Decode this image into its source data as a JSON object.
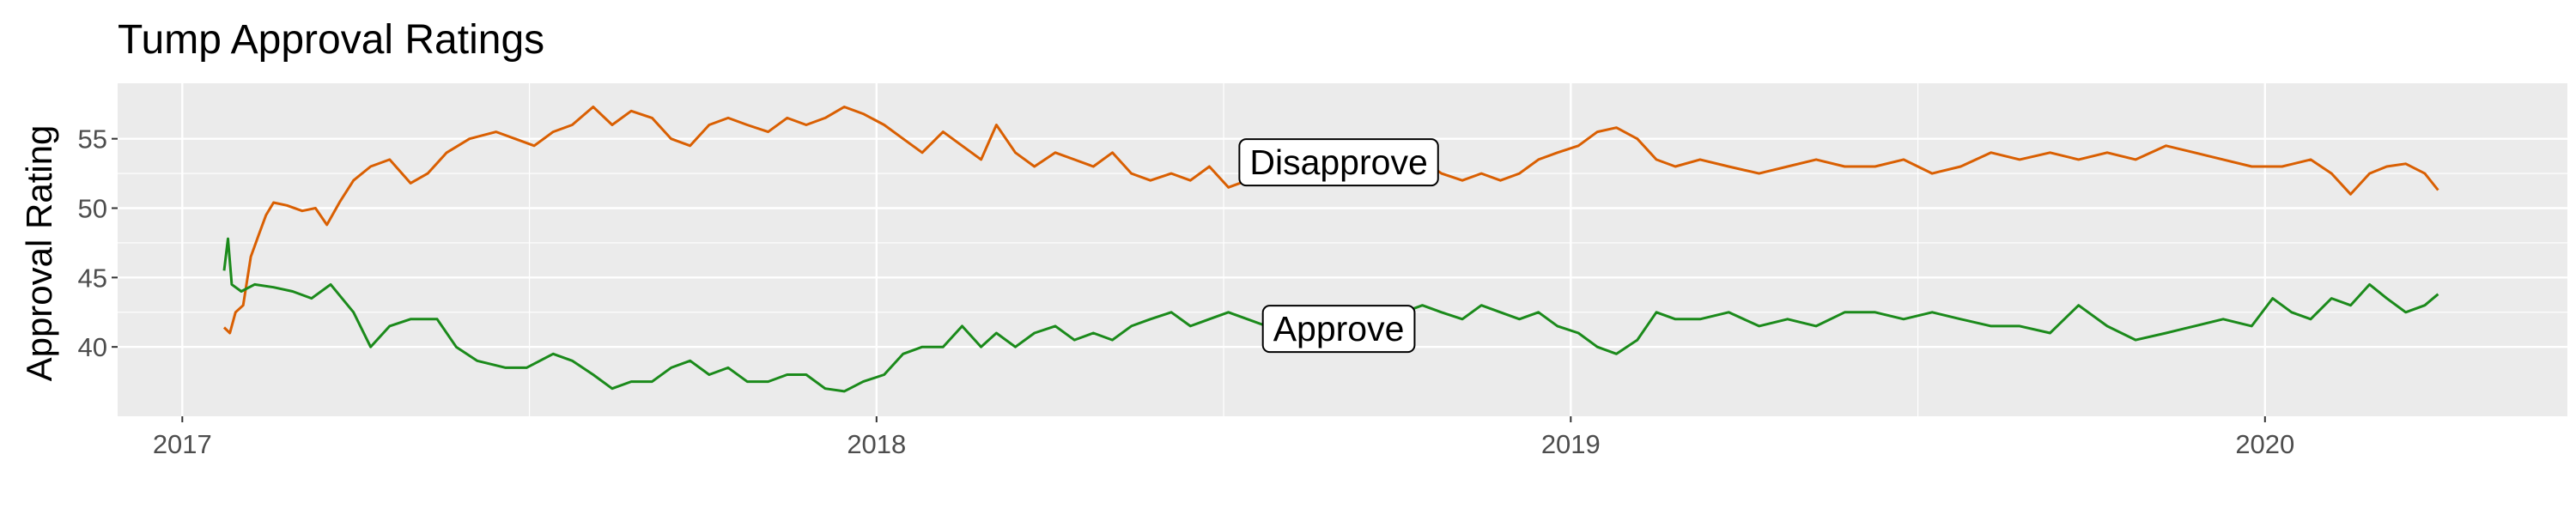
{
  "chart_data": {
    "type": "line",
    "title": "Tump Approval Ratings",
    "xlabel": "",
    "ylabel": "Approval Rating",
    "x_range": [
      "2016-11-28",
      "2020-06-08"
    ],
    "ylim": [
      35,
      59
    ],
    "x_ticks": [
      {
        "date": "2017-01-01",
        "label": "2017"
      },
      {
        "date": "2018-01-01",
        "label": "2018"
      },
      {
        "date": "2019-01-01",
        "label": "2019"
      },
      {
        "date": "2020-01-01",
        "label": "2020"
      }
    ],
    "y_ticks": [
      40,
      45,
      50,
      55
    ],
    "grid": true,
    "panel_background": "#ebebeb",
    "grid_color": "#ffffff",
    "series": [
      {
        "label_text": "Disapprove",
        "label_position": {
          "date": "2018-09-01",
          "value": 53.3
        },
        "color": "#d95f02",
        "points": [
          [
            "2017-01-23",
            41.4
          ],
          [
            "2017-01-26",
            41.0
          ],
          [
            "2017-01-29",
            42.5
          ],
          [
            "2017-02-02",
            43.0
          ],
          [
            "2017-02-06",
            46.5
          ],
          [
            "2017-02-10",
            48.0
          ],
          [
            "2017-02-14",
            49.5
          ],
          [
            "2017-02-18",
            50.4
          ],
          [
            "2017-02-25",
            50.2
          ],
          [
            "2017-03-05",
            49.8
          ],
          [
            "2017-03-12",
            50.0
          ],
          [
            "2017-03-18",
            48.8
          ],
          [
            "2017-03-25",
            50.5
          ],
          [
            "2017-04-01",
            52.0
          ],
          [
            "2017-04-10",
            53.0
          ],
          [
            "2017-04-20",
            53.5
          ],
          [
            "2017-05-01",
            51.8
          ],
          [
            "2017-05-10",
            52.5
          ],
          [
            "2017-05-20",
            54.0
          ],
          [
            "2017-06-01",
            55.0
          ],
          [
            "2017-06-15",
            55.5
          ],
          [
            "2017-06-25",
            55.0
          ],
          [
            "2017-07-05",
            54.5
          ],
          [
            "2017-07-15",
            55.5
          ],
          [
            "2017-07-25",
            56.0
          ],
          [
            "2017-08-05",
            57.3
          ],
          [
            "2017-08-15",
            56.0
          ],
          [
            "2017-08-25",
            57.0
          ],
          [
            "2017-09-05",
            56.5
          ],
          [
            "2017-09-15",
            55.0
          ],
          [
            "2017-09-25",
            54.5
          ],
          [
            "2017-10-05",
            56.0
          ],
          [
            "2017-10-15",
            56.5
          ],
          [
            "2017-10-25",
            56.0
          ],
          [
            "2017-11-05",
            55.5
          ],
          [
            "2017-11-15",
            56.5
          ],
          [
            "2017-11-25",
            56.0
          ],
          [
            "2017-12-05",
            56.5
          ],
          [
            "2017-12-15",
            57.3
          ],
          [
            "2017-12-25",
            56.8
          ],
          [
            "2018-01-05",
            56.0
          ],
          [
            "2018-01-15",
            55.0
          ],
          [
            "2018-01-25",
            54.0
          ],
          [
            "2018-02-05",
            55.5
          ],
          [
            "2018-02-15",
            54.5
          ],
          [
            "2018-02-25",
            53.5
          ],
          [
            "2018-03-05",
            56.0
          ],
          [
            "2018-03-15",
            54.0
          ],
          [
            "2018-03-25",
            53.0
          ],
          [
            "2018-04-05",
            54.0
          ],
          [
            "2018-04-15",
            53.5
          ],
          [
            "2018-04-25",
            53.0
          ],
          [
            "2018-05-05",
            54.0
          ],
          [
            "2018-05-15",
            52.5
          ],
          [
            "2018-05-25",
            52.0
          ],
          [
            "2018-06-05",
            52.5
          ],
          [
            "2018-06-15",
            52.0
          ],
          [
            "2018-06-25",
            53.0
          ],
          [
            "2018-07-05",
            51.5
          ],
          [
            "2018-07-15",
            52.0
          ],
          [
            "2018-07-25",
            53.5
          ],
          [
            "2018-08-05",
            53.0
          ],
          [
            "2018-08-15",
            54.0
          ],
          [
            "2018-08-25",
            53.5
          ],
          [
            "2018-09-05",
            54.0
          ],
          [
            "2018-09-15",
            52.5
          ],
          [
            "2018-09-25",
            53.0
          ],
          [
            "2018-10-05",
            52.5
          ],
          [
            "2018-10-15",
            53.5
          ],
          [
            "2018-10-25",
            52.5
          ],
          [
            "2018-11-05",
            52.0
          ],
          [
            "2018-11-15",
            52.5
          ],
          [
            "2018-11-25",
            52.0
          ],
          [
            "2018-12-05",
            52.5
          ],
          [
            "2018-12-15",
            53.5
          ],
          [
            "2018-12-25",
            54.0
          ],
          [
            "2019-01-05",
            54.5
          ],
          [
            "2019-01-15",
            55.5
          ],
          [
            "2019-01-25",
            55.8
          ],
          [
            "2019-02-05",
            55.0
          ],
          [
            "2019-02-15",
            53.5
          ],
          [
            "2019-02-25",
            53.0
          ],
          [
            "2019-03-10",
            53.5
          ],
          [
            "2019-03-25",
            53.0
          ],
          [
            "2019-04-10",
            52.5
          ],
          [
            "2019-04-25",
            53.0
          ],
          [
            "2019-05-10",
            53.5
          ],
          [
            "2019-05-25",
            53.0
          ],
          [
            "2019-06-10",
            53.0
          ],
          [
            "2019-06-25",
            53.5
          ],
          [
            "2019-07-10",
            52.5
          ],
          [
            "2019-07-25",
            53.0
          ],
          [
            "2019-08-10",
            54.0
          ],
          [
            "2019-08-25",
            53.5
          ],
          [
            "2019-09-10",
            54.0
          ],
          [
            "2019-09-25",
            53.5
          ],
          [
            "2019-10-10",
            54.0
          ],
          [
            "2019-10-25",
            53.5
          ],
          [
            "2019-11-10",
            54.5
          ],
          [
            "2019-11-25",
            54.0
          ],
          [
            "2019-12-10",
            53.5
          ],
          [
            "2019-12-25",
            53.0
          ],
          [
            "2020-01-10",
            53.0
          ],
          [
            "2020-01-25",
            53.5
          ],
          [
            "2020-02-05",
            52.5
          ],
          [
            "2020-02-15",
            51.0
          ],
          [
            "2020-02-25",
            52.5
          ],
          [
            "2020-03-05",
            53.0
          ],
          [
            "2020-03-15",
            53.2
          ],
          [
            "2020-03-25",
            52.5
          ],
          [
            "2020-04-01",
            51.3
          ]
        ]
      },
      {
        "label_text": "Approve",
        "label_position": {
          "date": "2018-09-01",
          "value": 41.3
        },
        "color": "#1b8a1b",
        "points": [
          [
            "2017-01-23",
            45.5
          ],
          [
            "2017-01-25",
            47.8
          ],
          [
            "2017-01-27",
            44.5
          ],
          [
            "2017-02-01",
            44.0
          ],
          [
            "2017-02-08",
            44.5
          ],
          [
            "2017-02-18",
            44.3
          ],
          [
            "2017-02-28",
            44.0
          ],
          [
            "2017-03-10",
            43.5
          ],
          [
            "2017-03-20",
            44.5
          ],
          [
            "2017-04-01",
            42.5
          ],
          [
            "2017-04-10",
            40.0
          ],
          [
            "2017-04-20",
            41.5
          ],
          [
            "2017-05-01",
            42.0
          ],
          [
            "2017-05-15",
            42.0
          ],
          [
            "2017-05-25",
            40.0
          ],
          [
            "2017-06-05",
            39.0
          ],
          [
            "2017-06-20",
            38.5
          ],
          [
            "2017-07-01",
            38.5
          ],
          [
            "2017-07-15",
            39.5
          ],
          [
            "2017-07-25",
            39.0
          ],
          [
            "2017-08-05",
            38.0
          ],
          [
            "2017-08-15",
            37.0
          ],
          [
            "2017-08-25",
            37.5
          ],
          [
            "2017-09-05",
            37.5
          ],
          [
            "2017-09-15",
            38.5
          ],
          [
            "2017-09-25",
            39.0
          ],
          [
            "2017-10-05",
            38.0
          ],
          [
            "2017-10-15",
            38.5
          ],
          [
            "2017-10-25",
            37.5
          ],
          [
            "2017-11-05",
            37.5
          ],
          [
            "2017-11-15",
            38.0
          ],
          [
            "2017-11-25",
            38.0
          ],
          [
            "2017-12-05",
            37.0
          ],
          [
            "2017-12-15",
            36.8
          ],
          [
            "2017-12-25",
            37.5
          ],
          [
            "2018-01-05",
            38.0
          ],
          [
            "2018-01-15",
            39.5
          ],
          [
            "2018-01-25",
            40.0
          ],
          [
            "2018-02-05",
            40.0
          ],
          [
            "2018-02-15",
            41.5
          ],
          [
            "2018-02-25",
            40.0
          ],
          [
            "2018-03-05",
            41.0
          ],
          [
            "2018-03-15",
            40.0
          ],
          [
            "2018-03-25",
            41.0
          ],
          [
            "2018-04-05",
            41.5
          ],
          [
            "2018-04-15",
            40.5
          ],
          [
            "2018-04-25",
            41.0
          ],
          [
            "2018-05-05",
            40.5
          ],
          [
            "2018-05-15",
            41.5
          ],
          [
            "2018-05-25",
            42.0
          ],
          [
            "2018-06-05",
            42.5
          ],
          [
            "2018-06-15",
            41.5
          ],
          [
            "2018-06-25",
            42.0
          ],
          [
            "2018-07-05",
            42.5
          ],
          [
            "2018-07-15",
            42.0
          ],
          [
            "2018-07-25",
            41.5
          ],
          [
            "2018-08-05",
            41.5
          ],
          [
            "2018-08-15",
            42.0
          ],
          [
            "2018-08-25",
            41.0
          ],
          [
            "2018-09-05",
            40.5
          ],
          [
            "2018-09-15",
            40.5
          ],
          [
            "2018-09-25",
            41.5
          ],
          [
            "2018-10-05",
            42.5
          ],
          [
            "2018-10-15",
            43.0
          ],
          [
            "2018-10-25",
            42.5
          ],
          [
            "2018-11-05",
            42.0
          ],
          [
            "2018-11-15",
            43.0
          ],
          [
            "2018-11-25",
            42.5
          ],
          [
            "2018-12-05",
            42.0
          ],
          [
            "2018-12-15",
            42.5
          ],
          [
            "2018-12-25",
            41.5
          ],
          [
            "2019-01-05",
            41.0
          ],
          [
            "2019-01-15",
            40.0
          ],
          [
            "2019-01-25",
            39.5
          ],
          [
            "2019-02-05",
            40.5
          ],
          [
            "2019-02-15",
            42.5
          ],
          [
            "2019-02-25",
            42.0
          ],
          [
            "2019-03-10",
            42.0
          ],
          [
            "2019-03-25",
            42.5
          ],
          [
            "2019-04-10",
            41.5
          ],
          [
            "2019-04-25",
            42.0
          ],
          [
            "2019-05-10",
            41.5
          ],
          [
            "2019-05-25",
            42.5
          ],
          [
            "2019-06-10",
            42.5
          ],
          [
            "2019-06-25",
            42.0
          ],
          [
            "2019-07-10",
            42.5
          ],
          [
            "2019-07-25",
            42.0
          ],
          [
            "2019-08-10",
            41.5
          ],
          [
            "2019-08-25",
            41.5
          ],
          [
            "2019-09-10",
            41.0
          ],
          [
            "2019-09-25",
            43.0
          ],
          [
            "2019-10-10",
            41.5
          ],
          [
            "2019-10-25",
            40.5
          ],
          [
            "2019-11-10",
            41.0
          ],
          [
            "2019-11-25",
            41.5
          ],
          [
            "2019-12-10",
            42.0
          ],
          [
            "2019-12-25",
            41.5
          ],
          [
            "2020-01-05",
            43.5
          ],
          [
            "2020-01-15",
            42.5
          ],
          [
            "2020-01-25",
            42.0
          ],
          [
            "2020-02-05",
            43.5
          ],
          [
            "2020-02-15",
            43.0
          ],
          [
            "2020-02-25",
            44.5
          ],
          [
            "2020-03-05",
            43.5
          ],
          [
            "2020-03-15",
            42.5
          ],
          [
            "2020-03-25",
            43.0
          ],
          [
            "2020-04-01",
            43.8
          ]
        ]
      }
    ]
  }
}
